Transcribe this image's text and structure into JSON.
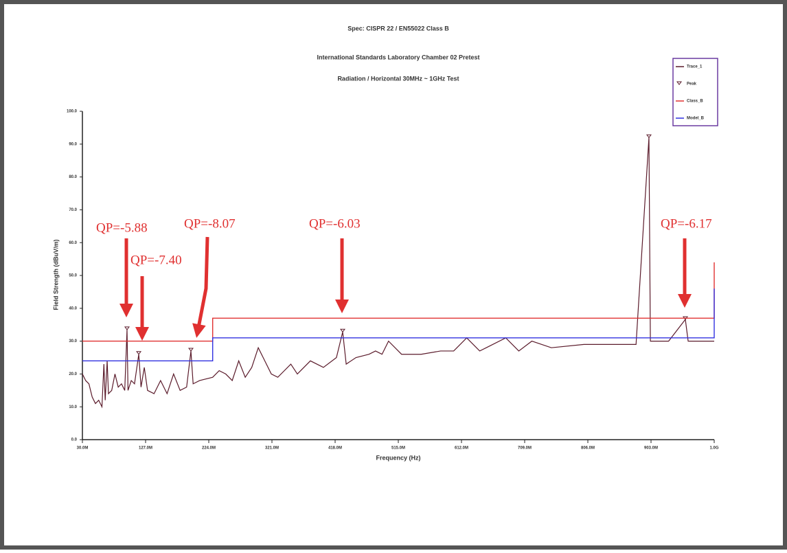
{
  "chart_data": {
    "type": "line",
    "title": "Spec: CISPR 22 / EN55022 Class B",
    "subtitles": [
      "International Standards Laboratory Chamber 02 Pretest",
      "Radiation / Horizontal 30MHz ~ 1GHz Test"
    ],
    "xlabel": "Frequency (Hz)",
    "ylabel": "Field Strength (dBuV/m)",
    "xlim": [
      30,
      1000
    ],
    "xticks": [
      {
        "value": 30,
        "label": "30.0M"
      },
      {
        "value": 127,
        "label": "127.0M"
      },
      {
        "value": 224,
        "label": "224.0M"
      },
      {
        "value": 321,
        "label": "321.0M"
      },
      {
        "value": 418,
        "label": "418.0M"
      },
      {
        "value": 515,
        "label": "515.0M"
      },
      {
        "value": 612,
        "label": "612.0M"
      },
      {
        "value": 709,
        "label": "709.0M"
      },
      {
        "value": 806,
        "label": "806.0M"
      },
      {
        "value": 903,
        "label": "903.0M"
      },
      {
        "value": 1000,
        "label": "1.0G"
      }
    ],
    "ylim": [
      0,
      100
    ],
    "yticks": [
      {
        "value": 0,
        "label": "0.0"
      },
      {
        "value": 10,
        "label": "10.0"
      },
      {
        "value": 20,
        "label": "20.0"
      },
      {
        "value": 30,
        "label": "30.0"
      },
      {
        "value": 40,
        "label": "40.0"
      },
      {
        "value": 50,
        "label": "50.0"
      },
      {
        "value": 60,
        "label": "60.0"
      },
      {
        "value": 70,
        "label": "70.0"
      },
      {
        "value": 80,
        "label": "80.0"
      },
      {
        "value": 90,
        "label": "90.0"
      },
      {
        "value": 100,
        "label": "100.0"
      }
    ],
    "series": [
      {
        "name": "Trace_1",
        "color": "#5a1a2a",
        "style": "line",
        "x": [
          30,
          35,
          40,
          45,
          50,
          55,
          60,
          63,
          65,
          68,
          70,
          75,
          80,
          85,
          90,
          95,
          98.5,
          100,
          105,
          110,
          116.5,
          120,
          125,
          130,
          140,
          150,
          160,
          170,
          180,
          190,
          196.6,
          200,
          210,
          230,
          240,
          250,
          260,
          270,
          280,
          290,
          300,
          320,
          330,
          340,
          350,
          360,
          380,
          400,
          420,
          429.6,
          435,
          450,
          470,
          480,
          490,
          500,
          520,
          550,
          580,
          600,
          620,
          640,
          650,
          680,
          700,
          720,
          750,
          800,
          850,
          880,
          899.8,
          902,
          910,
          930,
          955.7,
          960,
          980,
          1000
        ],
        "values": [
          20,
          18,
          17,
          13,
          11,
          12,
          10,
          23,
          12,
          24,
          14,
          15,
          20,
          16,
          17,
          15,
          33.5,
          15,
          18,
          17,
          26,
          16,
          22,
          15,
          14,
          18,
          14,
          20,
          15,
          16,
          27,
          17,
          18,
          19,
          21,
          20,
          18,
          24,
          19,
          22,
          28,
          20,
          19,
          21,
          23,
          20,
          24,
          22,
          25,
          32.8,
          23,
          25,
          26,
          27,
          26,
          30,
          26,
          26,
          27,
          27,
          31,
          27,
          28,
          31,
          27,
          30,
          28,
          29,
          29,
          29,
          92,
          30,
          30,
          30,
          36.6,
          30,
          30,
          30
        ]
      },
      {
        "name": "Peak",
        "color": "#5a1a2a",
        "style": "marker",
        "x": [
          98.5,
          116.5,
          196.6,
          429.6,
          899.8,
          955.7
        ],
        "values": [
          33.5,
          26,
          27,
          32.8,
          92,
          36.6
        ]
      },
      {
        "name": "Class_B",
        "color": "#e03030",
        "style": "line",
        "x": [
          30,
          230,
          230,
          1000,
          1000
        ],
        "values": [
          30,
          30,
          37,
          37,
          54
        ]
      },
      {
        "name": "Model_B",
        "color": "#3030e0",
        "style": "line",
        "x": [
          30,
          230,
          230,
          1000,
          1000
        ],
        "values": [
          24,
          24,
          31,
          31,
          46
        ]
      }
    ],
    "annotations": [
      "QP=-5.88",
      "QP=-7.40",
      "QP=-8.07",
      "QP=-6.03",
      "QP=-6.17"
    ]
  }
}
